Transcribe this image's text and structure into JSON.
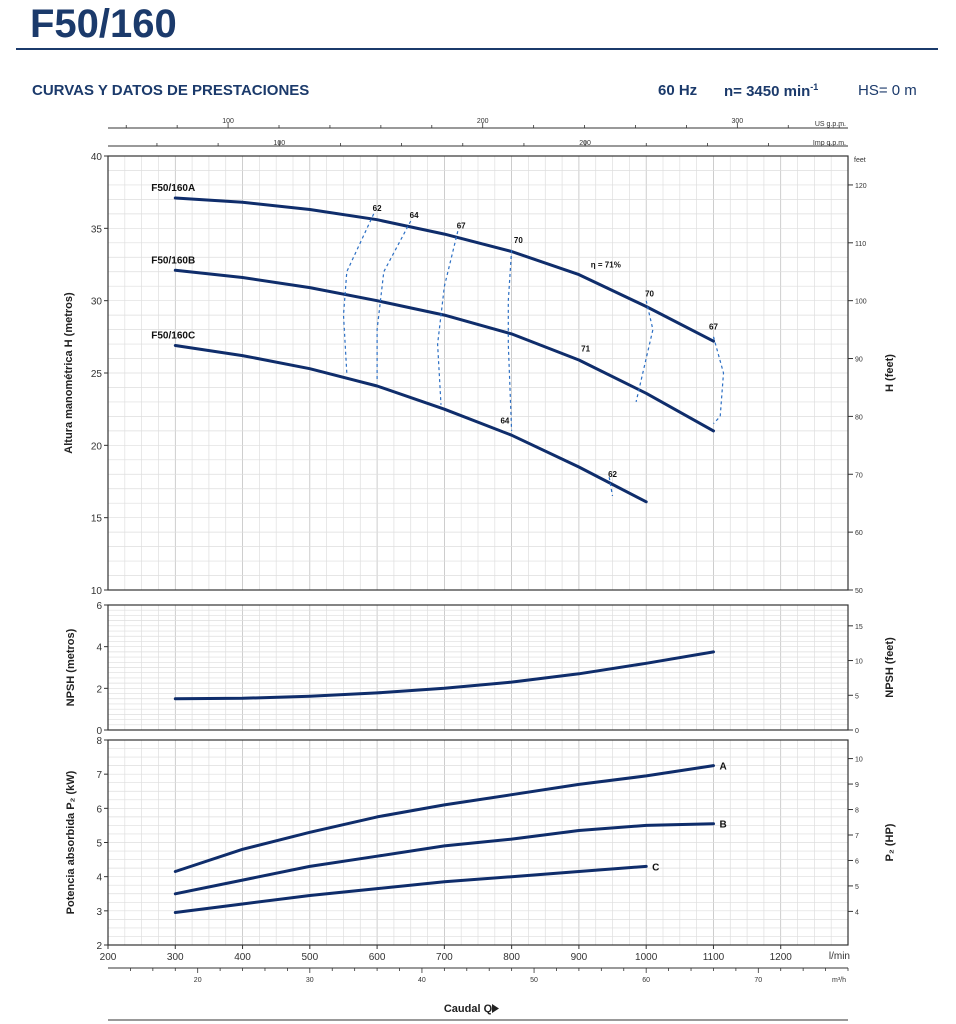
{
  "header": {
    "title": "F50/160",
    "section": "CURVAS Y DATOS DE PRESTACIONES",
    "freq": "60 Hz",
    "speed_prefix": "n= 3450 min",
    "speed_sup": "-1",
    "hs": "HS= 0 m"
  },
  "colors": {
    "brand": "#1b3a6b",
    "curve": "#0f2d6b",
    "grid": "#cccccc",
    "eff": "#2c6fc4"
  },
  "chart_data": [
    {
      "type": "line",
      "name": "head",
      "ylabel": "Altura manométrica H  (metros)",
      "y2label": "H (feet)",
      "xlim": [
        200,
        1300
      ],
      "ylim": [
        10,
        40
      ],
      "y2lim": [
        50,
        125
      ],
      "yticks": [
        10,
        15,
        20,
        25,
        30,
        35,
        40
      ],
      "y2ticks": [
        50,
        60,
        70,
        80,
        90,
        100,
        110,
        120
      ],
      "y2unit": "feet",
      "top_axis_usgpm": {
        "label": "US g.p.m.",
        "ticks": [
          100,
          200,
          300
        ]
      },
      "top_axis_impgpm": {
        "label": "Imp g.p.m.",
        "ticks": [
          100,
          200
        ]
      },
      "series": [
        {
          "name": "F50/160A",
          "x": [
            300,
            400,
            500,
            600,
            700,
            800,
            900,
            1000,
            1100
          ],
          "y": [
            37.1,
            36.8,
            36.3,
            35.6,
            34.6,
            33.4,
            31.8,
            29.6,
            27.2
          ]
        },
        {
          "name": "F50/160B",
          "x": [
            300,
            400,
            500,
            600,
            700,
            800,
            900,
            1000,
            1100
          ],
          "y": [
            32.1,
            31.6,
            30.9,
            30.0,
            29.0,
            27.7,
            25.9,
            23.6,
            21.0
          ]
        },
        {
          "name": "F50/160C",
          "x": [
            300,
            400,
            500,
            600,
            700,
            800,
            900,
            1000
          ],
          "y": [
            26.9,
            26.2,
            25.3,
            24.1,
            22.5,
            20.7,
            18.5,
            16.1
          ]
        }
      ],
      "efficiency_labels": [
        {
          "text": "62",
          "x": 600,
          "y": 36.2
        },
        {
          "text": "64",
          "x": 655,
          "y": 35.7
        },
        {
          "text": "67",
          "x": 725,
          "y": 35.0
        },
        {
          "text": "70",
          "x": 810,
          "y": 34.0
        },
        {
          "text": "η = 71%",
          "x": 940,
          "y": 32.3
        },
        {
          "text": "70",
          "x": 1005,
          "y": 30.3
        },
        {
          "text": "67",
          "x": 1100,
          "y": 28.0
        },
        {
          "text": "71",
          "x": 910,
          "y": 26.5
        },
        {
          "text": "64",
          "x": 790,
          "y": 21.5
        },
        {
          "text": "62",
          "x": 950,
          "y": 17.8
        }
      ],
      "efficiency_isolines": [
        {
          "x": [
            595,
            555,
            550,
            555
          ],
          "y": [
            36.0,
            32.0,
            29.0,
            25.0
          ]
        },
        {
          "x": [
            650,
            610,
            600,
            600
          ],
          "y": [
            35.5,
            32.0,
            28.0,
            24.5
          ]
        },
        {
          "x": [
            720,
            700,
            690,
            695
          ],
          "y": [
            34.8,
            31.0,
            27.0,
            22.8
          ]
        },
        {
          "x": [
            800,
            795,
            795,
            800
          ],
          "y": [
            33.5,
            30.0,
            27.0,
            21.0
          ]
        },
        {
          "x": [
            1000,
            1010,
            995,
            985
          ],
          "y": [
            30.0,
            28.0,
            25.0,
            23.0
          ]
        },
        {
          "x": [
            1100,
            1115,
            1110,
            1100
          ],
          "y": [
            27.5,
            25.0,
            22.0,
            21.5
          ]
        },
        {
          "x": [
            945,
            950
          ],
          "y": [
            17.8,
            16.5
          ]
        }
      ]
    },
    {
      "type": "line",
      "name": "npsh",
      "ylabel": "NPSH  (metros)",
      "y2label": "NPSH  (feet)",
      "xlim": [
        200,
        1300
      ],
      "ylim": [
        0,
        6
      ],
      "y2lim": [
        0,
        18
      ],
      "yticks": [
        0,
        2,
        4,
        6
      ],
      "y2ticks": [
        0,
        5,
        10,
        15
      ],
      "series": [
        {
          "name": "NPSH",
          "x": [
            300,
            400,
            500,
            600,
            700,
            800,
            900,
            1000,
            1100
          ],
          "y": [
            1.5,
            1.52,
            1.62,
            1.78,
            2.0,
            2.3,
            2.7,
            3.2,
            3.75
          ]
        }
      ]
    },
    {
      "type": "line",
      "name": "power",
      "ylabel": "Potencia absorbida P₂  (kW)",
      "y2label": "P₂  (HP)",
      "xlabel": "Caudal Q",
      "xunit": "l/min",
      "x2unit": "m³/h",
      "xlim": [
        200,
        1300
      ],
      "ylim": [
        2,
        8
      ],
      "y2lim": [
        2.68,
        10.73
      ],
      "yticks": [
        2,
        3,
        4,
        5,
        6,
        7,
        8
      ],
      "y2ticks": [
        4,
        5,
        6,
        7,
        8,
        9,
        10
      ],
      "xticks": [
        200,
        300,
        400,
        500,
        600,
        700,
        800,
        900,
        1000,
        1100,
        1200
      ],
      "x2ticks": [
        20,
        30,
        40,
        50,
        60,
        70
      ],
      "series": [
        {
          "name": "A",
          "x": [
            300,
            400,
            500,
            600,
            700,
            800,
            900,
            1000,
            1100
          ],
          "y": [
            4.15,
            4.8,
            5.3,
            5.75,
            6.1,
            6.4,
            6.7,
            6.95,
            7.25
          ]
        },
        {
          "name": "B",
          "x": [
            300,
            400,
            500,
            600,
            700,
            800,
            900,
            1000,
            1100
          ],
          "y": [
            3.5,
            3.9,
            4.3,
            4.6,
            4.9,
            5.1,
            5.35,
            5.5,
            5.55
          ]
        },
        {
          "name": "C",
          "x": [
            300,
            400,
            500,
            600,
            700,
            800,
            900,
            1000
          ],
          "y": [
            2.95,
            3.2,
            3.45,
            3.65,
            3.85,
            4.0,
            4.15,
            4.3
          ]
        }
      ]
    }
  ]
}
